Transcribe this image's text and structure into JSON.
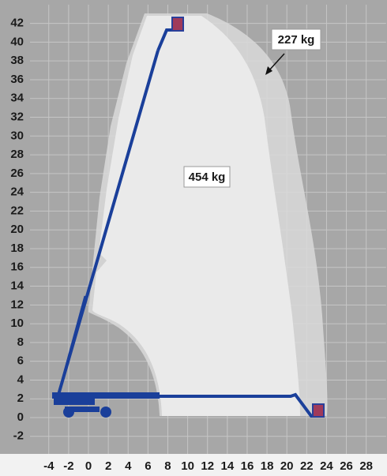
{
  "chart_data": {
    "type": "working-range",
    "xlim": [
      -6,
      30
    ],
    "ylim": [
      -4,
      44
    ],
    "xticks": [
      -4,
      -2,
      0,
      2,
      4,
      6,
      8,
      10,
      12,
      14,
      16,
      18,
      20,
      22,
      24,
      26,
      28
    ],
    "yticks": [
      -2,
      0,
      2,
      4,
      6,
      8,
      10,
      12,
      14,
      16,
      18,
      20,
      22,
      24,
      26,
      28,
      30,
      32,
      34,
      36,
      38,
      40,
      42
    ],
    "grid": true,
    "annotations": [
      "227 kg",
      "454 kg"
    ]
  }
}
